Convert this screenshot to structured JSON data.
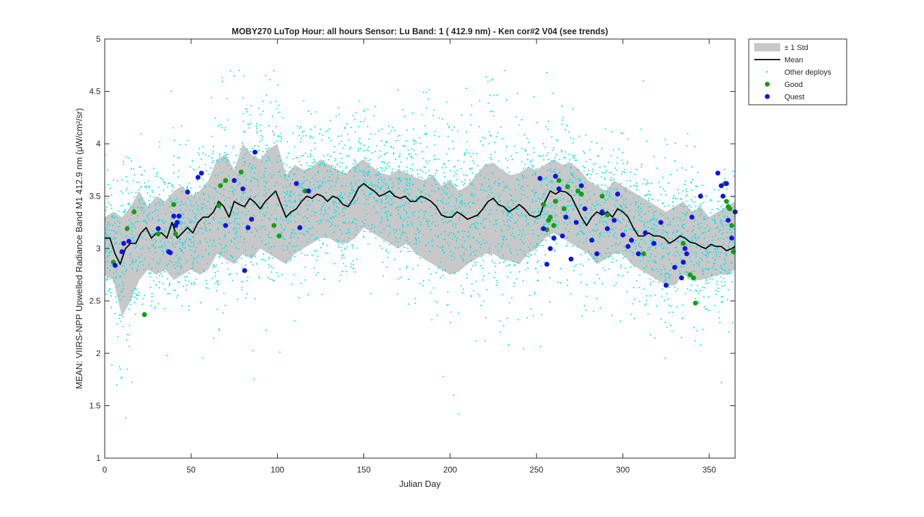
{
  "chart_data": {
    "type": "scatter",
    "title": "MOBY270   LuTop  Hour: all hours  Sensor: Lu Band: 1 ( 412.9 nm)  - Ken cor#2 V04 (see trends)",
    "xlabel": "Julian Day",
    "ylabel": "MEAN: VIIRS-NPP Upwelled Radiance Band M1 412.9 nm (µW/cm²/sr)",
    "xlim": [
      0,
      365
    ],
    "ylim": [
      1,
      5
    ],
    "xticks": [
      0,
      50,
      100,
      150,
      200,
      250,
      300,
      350
    ],
    "yticks": [
      1,
      1.5,
      2,
      2.5,
      3,
      3.5,
      4,
      4.5,
      5
    ],
    "ytick_labels": [
      "1",
      "1.5",
      "2",
      "2.5",
      "3",
      "3.5",
      "4",
      "4.5",
      "5"
    ],
    "grid": false,
    "legend_position": "top-right (outside)",
    "legend": [
      {
        "label": "± 1 Std",
        "kind": "patch",
        "color": "#c8c8c8"
      },
      {
        "label": "Mean",
        "kind": "line",
        "color": "#000000"
      },
      {
        "label": "Other deploys",
        "kind": "dot",
        "color": "#00e5ee"
      },
      {
        "label": "Good",
        "kind": "marker",
        "color": "#12a012"
      },
      {
        "label": "Quest",
        "kind": "marker",
        "color": "#1010e8"
      }
    ],
    "series": [
      {
        "name": "Mean",
        "x": [
          0,
          3,
          6,
          9,
          12,
          15,
          18,
          21,
          24,
          27,
          30,
          33,
          36,
          39,
          42,
          45,
          48,
          51,
          54,
          57,
          60,
          63,
          66,
          69,
          72,
          75,
          78,
          81,
          84,
          87,
          90,
          93,
          96,
          99,
          102,
          105,
          108,
          111,
          114,
          117,
          120,
          123,
          126,
          129,
          132,
          135,
          138,
          141,
          144,
          147,
          150,
          153,
          156,
          159,
          162,
          165,
          168,
          171,
          174,
          177,
          180,
          183,
          186,
          189,
          192,
          195,
          198,
          201,
          204,
          207,
          210,
          213,
          216,
          219,
          222,
          225,
          228,
          231,
          234,
          237,
          240,
          243,
          246,
          249,
          252,
          255,
          258,
          261,
          264,
          267,
          270,
          273,
          276,
          279,
          282,
          285,
          288,
          291,
          294,
          297,
          300,
          303,
          306,
          309,
          312,
          315,
          318,
          321,
          324,
          327,
          330,
          333,
          336,
          339,
          342,
          345,
          348,
          351,
          354,
          357,
          360,
          363,
          365
        ],
        "values": [
          3.1,
          3.1,
          2.95,
          2.85,
          3.0,
          3.05,
          3.05,
          3.15,
          3.2,
          3.1,
          3.15,
          3.15,
          3.1,
          3.25,
          3.1,
          3.15,
          3.2,
          3.15,
          3.25,
          3.3,
          3.3,
          3.35,
          3.45,
          3.4,
          3.3,
          3.45,
          3.42,
          3.4,
          3.48,
          3.44,
          3.38,
          3.45,
          3.5,
          3.55,
          3.42,
          3.3,
          3.35,
          3.38,
          3.45,
          3.5,
          3.48,
          3.52,
          3.5,
          3.45,
          3.5,
          3.48,
          3.42,
          3.4,
          3.48,
          3.58,
          3.62,
          3.58,
          3.55,
          3.5,
          3.52,
          3.55,
          3.5,
          3.48,
          3.5,
          3.45,
          3.45,
          3.5,
          3.48,
          3.45,
          3.4,
          3.32,
          3.3,
          3.3,
          3.35,
          3.32,
          3.28,
          3.3,
          3.32,
          3.38,
          3.45,
          3.48,
          3.42,
          3.4,
          3.35,
          3.38,
          3.42,
          3.38,
          3.32,
          3.3,
          3.32,
          3.45,
          3.55,
          3.52,
          3.55,
          3.54,
          3.5,
          3.4,
          3.3,
          3.22,
          3.3,
          3.35,
          3.32,
          3.35,
          3.3,
          3.38,
          3.35,
          3.3,
          3.2,
          3.12,
          3.12,
          3.15,
          3.12,
          3.12,
          3.1,
          3.05,
          3.08,
          3.12,
          3.1,
          3.06,
          3.05,
          3.02,
          3.0,
          3.04,
          3.02,
          3.02,
          2.98,
          3.0,
          3.02
        ]
      },
      {
        "name": "± 1 Std",
        "x": [
          0,
          5,
          10,
          15,
          20,
          25,
          30,
          35,
          40,
          45,
          50,
          55,
          60,
          65,
          70,
          75,
          80,
          85,
          90,
          95,
          100,
          105,
          110,
          115,
          120,
          125,
          130,
          135,
          140,
          145,
          150,
          155,
          160,
          165,
          170,
          175,
          180,
          185,
          190,
          195,
          200,
          205,
          210,
          215,
          220,
          225,
          230,
          235,
          240,
          245,
          250,
          255,
          260,
          265,
          270,
          275,
          280,
          285,
          290,
          295,
          300,
          305,
          310,
          315,
          320,
          325,
          330,
          335,
          340,
          345,
          350,
          355,
          360,
          365
        ],
        "upper": [
          3.3,
          3.35,
          3.3,
          3.4,
          3.55,
          3.4,
          3.5,
          3.45,
          3.55,
          3.6,
          3.5,
          3.55,
          3.65,
          3.85,
          3.9,
          3.75,
          4.0,
          3.9,
          3.85,
          3.95,
          4.0,
          3.7,
          3.8,
          3.75,
          3.78,
          3.85,
          3.8,
          3.75,
          3.72,
          3.8,
          3.85,
          3.78,
          3.72,
          3.7,
          3.75,
          3.72,
          3.68,
          3.65,
          3.7,
          3.6,
          3.65,
          3.55,
          3.6,
          3.7,
          3.8,
          3.82,
          3.75,
          3.7,
          3.72,
          3.78,
          3.75,
          3.8,
          3.85,
          3.8,
          3.82,
          3.75,
          3.65,
          3.6,
          3.55,
          3.65,
          3.6,
          3.55,
          3.5,
          3.45,
          3.4,
          3.35,
          3.4,
          3.45,
          3.35,
          3.4,
          3.3,
          3.35,
          3.4,
          3.45
        ],
        "lower": [
          2.75,
          2.7,
          2.35,
          2.5,
          2.7,
          2.8,
          2.75,
          2.8,
          2.7,
          2.75,
          2.8,
          2.75,
          2.8,
          2.95,
          2.9,
          2.85,
          2.95,
          2.9,
          3.0,
          2.95,
          2.9,
          2.85,
          2.95,
          3.0,
          3.05,
          3.1,
          3.1,
          3.05,
          3.05,
          3.1,
          3.2,
          3.15,
          3.1,
          3.05,
          3.0,
          3.05,
          2.95,
          2.9,
          2.85,
          2.8,
          2.75,
          2.78,
          2.85,
          2.9,
          2.95,
          2.95,
          2.9,
          2.88,
          2.85,
          2.95,
          3.0,
          3.1,
          3.15,
          3.1,
          3.05,
          3.0,
          2.95,
          2.85,
          2.9,
          2.95,
          2.95,
          2.85,
          2.8,
          2.75,
          2.7,
          2.65,
          2.65,
          2.75,
          2.7,
          2.7,
          2.72,
          2.75,
          2.75,
          2.8
        ]
      },
      {
        "name": "Good",
        "x": [
          5,
          13,
          17,
          23,
          31,
          40,
          41,
          66,
          67,
          70,
          79,
          98,
          101,
          116,
          254,
          256,
          257,
          258,
          260,
          261,
          263,
          266,
          268,
          274,
          276,
          288,
          291,
          312,
          335,
          339,
          341,
          342,
          359,
          360,
          361,
          362,
          363,
          364
        ],
        "values": [
          2.87,
          3.19,
          3.35,
          2.37,
          3.14,
          3.42,
          3.14,
          3.41,
          3.6,
          3.65,
          3.73,
          3.22,
          3.12,
          3.55,
          3.42,
          3.18,
          3.27,
          3.3,
          3.22,
          3.45,
          3.65,
          3.38,
          3.59,
          3.55,
          3.52,
          3.5,
          3.32,
          2.95,
          3.05,
          2.75,
          2.72,
          2.48,
          3.62,
          3.45,
          3.4,
          3.38,
          3.22,
          2.97
        ]
      },
      {
        "name": "Quest",
        "x": [
          6,
          10,
          11,
          14,
          31,
          37,
          38,
          40,
          41,
          42,
          43,
          48,
          54,
          56,
          70,
          75,
          80,
          81,
          83,
          85,
          87,
          111,
          113,
          118,
          252,
          254,
          256,
          258,
          260,
          261,
          263,
          265,
          267,
          270,
          273,
          276,
          278,
          282,
          285,
          288,
          291,
          295,
          297,
          300,
          303,
          305,
          309,
          313,
          318,
          322,
          325,
          330,
          334,
          335,
          336,
          337,
          340,
          345,
          355,
          357,
          358,
          360,
          361,
          363,
          365
        ],
        "values": [
          2.84,
          2.97,
          3.05,
          3.07,
          3.19,
          2.97,
          2.96,
          3.31,
          3.22,
          3.25,
          3.31,
          3.54,
          3.68,
          3.72,
          3.22,
          3.65,
          3.57,
          2.79,
          3.2,
          3.28,
          3.92,
          3.62,
          3.2,
          3.55,
          3.67,
          3.19,
          2.85,
          3.0,
          3.1,
          3.69,
          3.57,
          3.12,
          3.3,
          2.9,
          3.25,
          3.6,
          3.38,
          3.08,
          2.95,
          3.35,
          3.19,
          3.27,
          3.52,
          3.13,
          3.02,
          3.08,
          2.95,
          3.15,
          3.05,
          3.25,
          2.65,
          2.82,
          2.72,
          2.87,
          3.0,
          2.95,
          3.3,
          3.5,
          3.72,
          3.6,
          3.5,
          3.62,
          3.27,
          3.1,
          3.35
        ]
      },
      {
        "name": "Other deploys",
        "description": "dense cloud of small cyan points, per-day mean ± std as above, with outliers between 1.4 and 4.7",
        "outliers": [
          {
            "x": 7,
            "y": 1.7
          },
          {
            "x": 9,
            "y": 1.85
          },
          {
            "x": 36,
            "y": 1.98
          },
          {
            "x": 75,
            "y": 4.65
          },
          {
            "x": 78,
            "y": 4.7
          },
          {
            "x": 98,
            "y": 4.7
          },
          {
            "x": 196,
            "y": 1.78
          },
          {
            "x": 202,
            "y": 1.6
          },
          {
            "x": 205,
            "y": 1.42
          },
          {
            "x": 229,
            "y": 2.2
          },
          {
            "x": 256,
            "y": 4.68
          },
          {
            "x": 312,
            "y": 4.6
          },
          {
            "x": 334,
            "y": 2.15
          },
          {
            "x": 357,
            "y": 1.72
          }
        ]
      }
    ]
  }
}
